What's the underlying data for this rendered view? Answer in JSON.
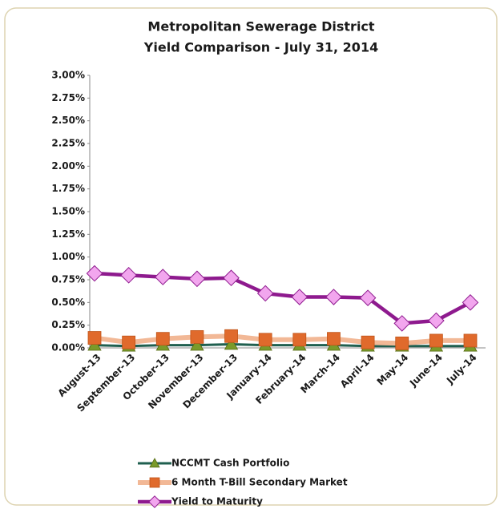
{
  "chart_data": {
    "type": "line",
    "title": "Metropolitan Sewerage District",
    "subtitle": "Yield Comparison - July 31, 2014",
    "categories": [
      "August-13",
      "September-13",
      "October-13",
      "November-13",
      "December-13",
      "January-14",
      "February-14",
      "March-14",
      "April-14",
      "May-14",
      "June-14",
      "July-14"
    ],
    "series": [
      {
        "name": "NCCMT Cash Portfolio",
        "color": "#1f5f4f",
        "marker": "triangle",
        "marker_color": "#7a9a2a",
        "values": [
          0.03,
          0.02,
          0.03,
          0.03,
          0.04,
          0.03,
          0.03,
          0.03,
          0.02,
          0.02,
          0.02,
          0.02
        ]
      },
      {
        "name": "6 Month T-Bill Secondary Market",
        "color": "#f2b896",
        "marker": "square",
        "marker_color": "#e06a2c",
        "values": [
          0.11,
          0.06,
          0.1,
          0.12,
          0.13,
          0.09,
          0.09,
          0.1,
          0.06,
          0.05,
          0.08,
          0.08
        ]
      },
      {
        "name": "Yield to Maturity",
        "color": "#8e1a8e",
        "marker": "diamond",
        "marker_color": "#f2a6ee",
        "values": [
          0.82,
          0.8,
          0.78,
          0.76,
          0.77,
          0.6,
          0.56,
          0.56,
          0.55,
          0.27,
          0.3,
          0.5
        ]
      }
    ],
    "ylim": [
      0,
      3
    ],
    "yticks": [
      {
        "value": 0,
        "label": "0.00%"
      },
      {
        "value": 0.25,
        "label": "0.25%"
      },
      {
        "value": 0.5,
        "label": "0.50%"
      },
      {
        "value": 0.75,
        "label": "0.75%"
      },
      {
        "value": 1,
        "label": "1.00%"
      },
      {
        "value": 1.25,
        "label": "1.25%"
      },
      {
        "value": 1.5,
        "label": "1.50%"
      },
      {
        "value": 1.75,
        "label": "1.75%"
      },
      {
        "value": 2,
        "label": "2.00%"
      },
      {
        "value": 2.25,
        "label": "2.25%"
      },
      {
        "value": 2.5,
        "label": "2.50%"
      },
      {
        "value": 2.75,
        "label": "2.75%"
      },
      {
        "value": 3,
        "label": "3.00%"
      }
    ],
    "grid": false
  }
}
